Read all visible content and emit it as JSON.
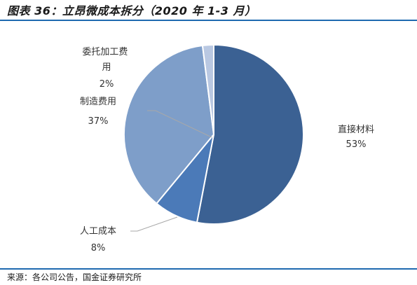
{
  "title": "图表 36：立昂微成本拆分（2020 年 1-3 月）",
  "source": "来源：各公司公告，国金证券研究所",
  "chart_data": {
    "type": "pie",
    "slices": [
      {
        "label": "直接材料",
        "value": 53,
        "value_label": "53%",
        "color": "#3b6193"
      },
      {
        "label": "人工成本",
        "value": 8,
        "value_label": "8%",
        "color": "#4b7ab8"
      },
      {
        "label": "制造费用",
        "value": 37,
        "value_label": "37%",
        "color": "#7e9ec9"
      },
      {
        "label": "委托加工费用",
        "value": 2,
        "value_label": "2%",
        "color": "#b9c8e2"
      }
    ],
    "start": "12 o'clock",
    "direction": "clockwise",
    "legend": "none",
    "labels": "outside with leader lines"
  }
}
